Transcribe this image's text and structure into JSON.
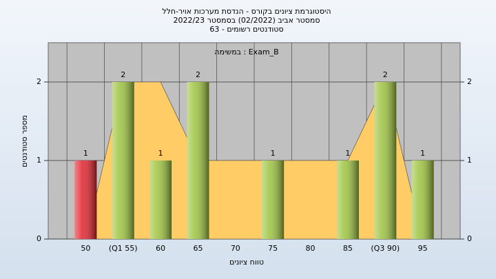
{
  "chart_data": {
    "type": "bar",
    "title": "היסטוגרמת ציונים בקורס - הנדסת מערכות אויר-חלל",
    "subtitle": "2022/23  סמסטר אביב  (02/2022)  בסמסטר",
    "subtitle2": "סטודנטים רשומים - 63",
    "annotation": "במשימה : Exam_B",
    "x_label": "טווח ציונים",
    "y_label": "מספר סטודנטים",
    "categories": [
      "50",
      "(Q1 55)",
      "60",
      "65",
      "70",
      "75",
      "80",
      "85",
      "(Q3 90)",
      "95"
    ],
    "values": [
      1,
      2,
      1,
      2,
      0,
      1,
      0,
      1,
      2,
      1
    ],
    "bar_colors": [
      "#e0202a",
      "#9cc23c",
      "#9cc23c",
      "#9cc23c",
      "#9cc23c",
      "#9cc23c",
      "#9cc23c",
      "#9cc23c",
      "#9cc23c",
      "#9cc23c"
    ],
    "area": {
      "color": "#ffcc66",
      "values": [
        0,
        2,
        2,
        1,
        1,
        1,
        1,
        1,
        2,
        0
      ]
    },
    "ylim": [
      0,
      2.5
    ],
    "yticks": [
      0,
      1,
      2
    ],
    "right_axis": true,
    "plot_color": "#c0c0c0"
  }
}
